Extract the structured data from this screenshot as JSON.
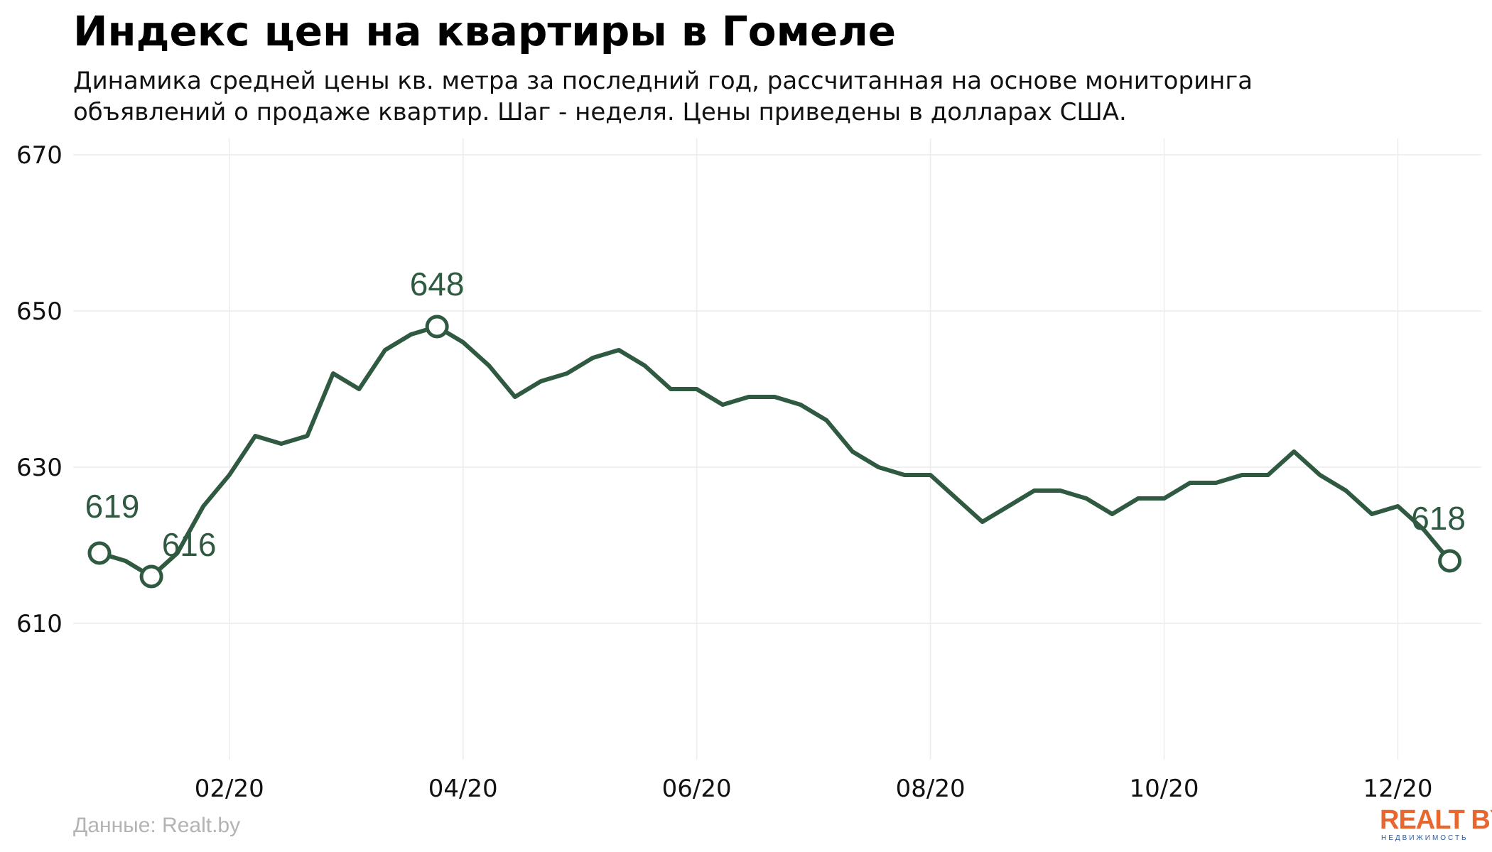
{
  "title": "Индекс цен на квартиры в Гомеле",
  "subtitle_lines": [
    "Динамика средней цены кв. метра за последний год, рассчитанная на основе мониторинга",
    "объявлений о продаже квартир. Шаг - неделя. Цены приведены в долларах США."
  ],
  "source": "Данные: Realt.by",
  "logo": {
    "main": "REALT BY",
    "sub": "НЕДВИЖИМОСТЬ"
  },
  "colors": {
    "line": "#2f5a41",
    "grid": "#ececec",
    "label": "#2f5a41",
    "logo_accent": "#e8672f",
    "logo_sub": "#2b5d9c"
  },
  "chart_data": {
    "type": "line",
    "title": "Индекс цен на квартиры в Гомеле",
    "xlabel": "",
    "ylabel": "",
    "ylim": [
      595,
      672
    ],
    "yticks": [
      610,
      630,
      650,
      670
    ],
    "xticks": [
      {
        "week": 5,
        "label": "02/20"
      },
      {
        "week": 14,
        "label": "04/20"
      },
      {
        "week": 23,
        "label": "06/20"
      },
      {
        "week": 32,
        "label": "08/20"
      },
      {
        "week": 41,
        "label": "10/20"
      },
      {
        "week": 50,
        "label": "12/20"
      }
    ],
    "grid": true,
    "series": [
      {
        "values": [
          619,
          618,
          616,
          619,
          625,
          629,
          634,
          633,
          634,
          642,
          640,
          645,
          647,
          648,
          646,
          643,
          639,
          641,
          642,
          644,
          645,
          643,
          640,
          640,
          638,
          639,
          639,
          638,
          636,
          632,
          630,
          629,
          629,
          626,
          623,
          625,
          627,
          627,
          626,
          624,
          626,
          626,
          628,
          628,
          629,
          629,
          632,
          629,
          627,
          624,
          625,
          622,
          618
        ]
      }
    ],
    "annotations": [
      {
        "index": 0,
        "label": "619"
      },
      {
        "index": 2,
        "label": "616"
      },
      {
        "index": 13,
        "label": "648"
      },
      {
        "index": 52,
        "label": "618"
      }
    ]
  }
}
